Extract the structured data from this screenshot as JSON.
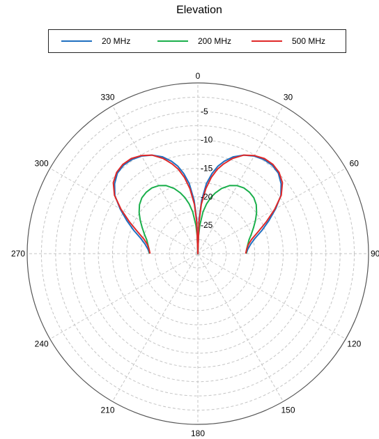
{
  "chart_data": {
    "type": "polar-line",
    "title": "Elevation",
    "legend": {
      "placement": "top",
      "border": true
    },
    "angle_ticks": [
      "0",
      "30",
      "60",
      "90",
      "120",
      "150",
      "180",
      "210",
      "240",
      "270",
      "300",
      "330"
    ],
    "angle_ticks_deg": [
      0,
      30,
      60,
      90,
      120,
      150,
      180,
      210,
      240,
      270,
      300,
      330
    ],
    "angle_direction": "clockwise",
    "angle_zero": "top",
    "radial_ticks": [
      "-5",
      "-10",
      "-15",
      "-20",
      "-25"
    ],
    "radial_ticks_values": [
      -5,
      -10,
      -15,
      -20,
      -25
    ],
    "radial_range": [
      -30,
      0
    ],
    "radial_ring_values": [
      -27.5,
      -25,
      -22.5,
      -20,
      -17.5,
      -15,
      -12.5,
      -10,
      -7.5,
      -5,
      -2.5,
      0
    ],
    "grid": true,
    "series": [
      {
        "name": "20 MHz",
        "color": "#1f6fc0",
        "theta_deg": [
          0,
          2,
          4,
          7,
          10,
          13,
          16,
          20,
          25,
          30,
          35,
          40,
          45,
          50,
          55,
          60,
          65,
          70,
          75,
          80,
          85,
          90
        ],
        "r": [
          -30,
          -24,
          -20.6,
          -17.6,
          -15.7,
          -14.2,
          -13.1,
          -11.9,
          -10.9,
          -10.2,
          -9.8,
          -9.7,
          -10.0,
          -10.9,
          -12.2,
          -14.2,
          -16.2,
          -18.0,
          -19.6,
          -20.6,
          -21.2,
          -21.5
        ]
      },
      {
        "name": "200 MHz",
        "color": "#1aaf4b",
        "theta_deg": [
          0,
          2,
          4,
          7,
          10,
          13,
          16,
          20,
          25,
          30,
          35,
          40,
          45,
          50,
          55,
          60,
          65,
          70,
          75,
          80,
          85,
          90
        ],
        "r": [
          -30,
          -27,
          -25,
          -22.6,
          -21.1,
          -19.9,
          -18.9,
          -17.8,
          -16.8,
          -16.2,
          -15.9,
          -15.9,
          -16.1,
          -16.6,
          -17.4,
          -18.3,
          -19.2,
          -20.0,
          -20.7,
          -21.1,
          -21.4,
          -21.5
        ]
      },
      {
        "name": "500 MHz",
        "color": "#e02828",
        "theta_deg": [
          0,
          2,
          4,
          7,
          10,
          13,
          16,
          20,
          25,
          30,
          35,
          40,
          45,
          50,
          55,
          60,
          65,
          70,
          75,
          80,
          85,
          90
        ],
        "r": [
          -30,
          -24.5,
          -21.3,
          -18.5,
          -16.4,
          -14.8,
          -13.6,
          -12.2,
          -10.9,
          -10.1,
          -9.6,
          -9.5,
          -9.8,
          -10.6,
          -12.1,
          -14.4,
          -16.7,
          -18.7,
          -20.2,
          -21.0,
          -21.4,
          -21.6
        ]
      }
    ]
  }
}
